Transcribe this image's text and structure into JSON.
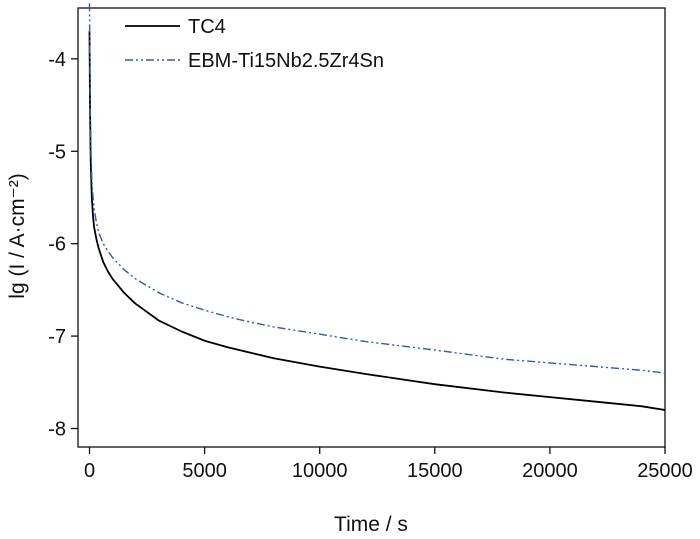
{
  "chart_data": {
    "type": "line",
    "xlabel": "Time / s",
    "ylabel": "lg (I / A·cm⁻²)",
    "xlim": [
      -500,
      25000
    ],
    "ylim": [
      -8.2,
      -3.45
    ],
    "x_ticks": [
      0,
      5000,
      10000,
      15000,
      20000,
      25000
    ],
    "x_tick_labels": [
      "0",
      "5000",
      "10000",
      "15000",
      "20000",
      "25000"
    ],
    "y_ticks": [
      -8,
      -7,
      -6,
      -5,
      -4
    ],
    "y_tick_labels": [
      "-8",
      "-7",
      "-6",
      "-5",
      "-4"
    ],
    "grid": false,
    "legend_position": "top-left",
    "series": [
      {
        "name": "TC4",
        "color": "#000000",
        "line_style": "solid",
        "x": [
          0,
          20,
          50,
          100,
          150,
          200,
          300,
          400,
          600,
          800,
          1000,
          1500,
          2000,
          3000,
          4000,
          5000,
          6000,
          7000,
          8000,
          10000,
          12000,
          15000,
          18000,
          20000,
          22000,
          24000,
          25000
        ],
        "y": [
          -3.7,
          -4.5,
          -5.1,
          -5.5,
          -5.7,
          -5.82,
          -5.95,
          -6.05,
          -6.2,
          -6.3,
          -6.38,
          -6.53,
          -6.65,
          -6.83,
          -6.95,
          -7.05,
          -7.12,
          -7.18,
          -7.24,
          -7.33,
          -7.41,
          -7.52,
          -7.61,
          -7.66,
          -7.71,
          -7.76,
          -7.8
        ]
      },
      {
        "name": "EBM-Ti15Nb2.5Zr4Sn",
        "color": "#2a5db0",
        "line_style": "dash-dot-dot",
        "x": [
          0,
          20,
          50,
          100,
          150,
          200,
          300,
          400,
          600,
          800,
          1000,
          1500,
          2000,
          3000,
          4000,
          5000,
          6000,
          7000,
          8000,
          10000,
          12000,
          15000,
          18000,
          20000,
          22000,
          24000,
          25000
        ],
        "y": [
          -3.4,
          -4.3,
          -4.9,
          -5.3,
          -5.5,
          -5.62,
          -5.77,
          -5.88,
          -6.0,
          -6.08,
          -6.15,
          -6.28,
          -6.38,
          -6.53,
          -6.64,
          -6.72,
          -6.79,
          -6.85,
          -6.9,
          -6.98,
          -7.06,
          -7.15,
          -7.25,
          -7.29,
          -7.33,
          -7.37,
          -7.4
        ]
      }
    ]
  }
}
